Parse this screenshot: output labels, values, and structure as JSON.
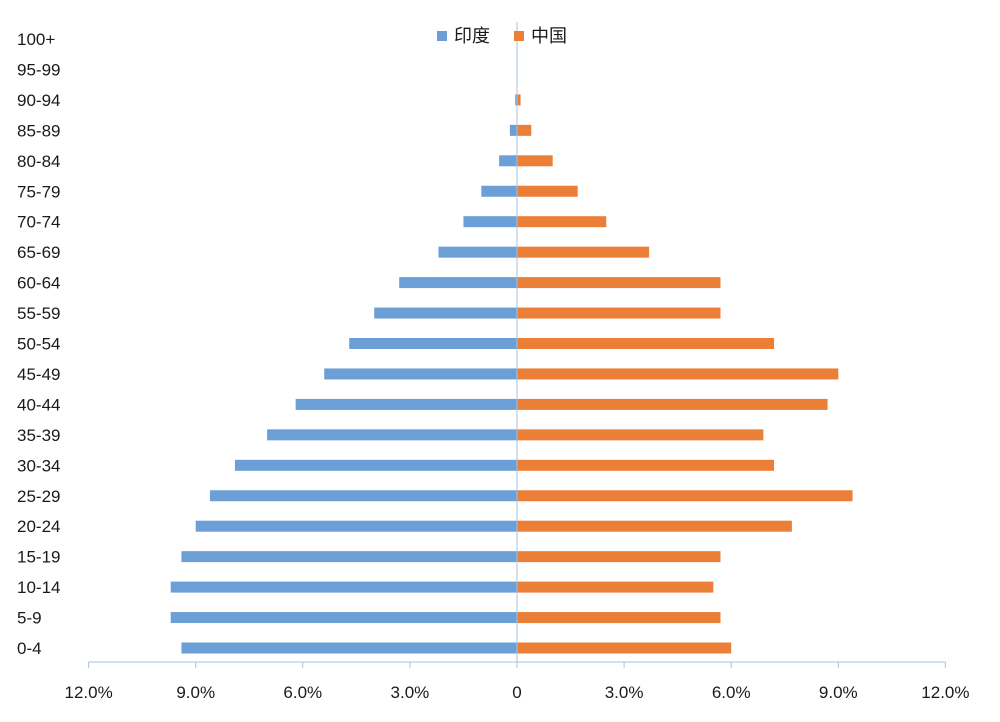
{
  "chart_data": {
    "type": "bar",
    "orientation": "horizontal",
    "layout": "population-pyramid",
    "categories": [
      "0-4",
      "5-9",
      "10-14",
      "15-19",
      "20-24",
      "25-29",
      "30-34",
      "35-39",
      "40-44",
      "45-49",
      "50-54",
      "55-59",
      "60-64",
      "65-69",
      "70-74",
      "75-79",
      "80-84",
      "85-89",
      "90-94",
      "95-99",
      "100+"
    ],
    "series": [
      {
        "name": "印度",
        "side": "left",
        "color": "#6b9fd6",
        "values": [
          9.4,
          9.7,
          9.7,
          9.4,
          9.0,
          8.6,
          7.9,
          7.0,
          6.2,
          5.4,
          4.7,
          4.0,
          3.3,
          2.2,
          1.5,
          1.0,
          0.5,
          0.2,
          0.05,
          0.0,
          0.0
        ]
      },
      {
        "name": "中国",
        "side": "right",
        "color": "#ec7f38",
        "values": [
          6.0,
          5.7,
          5.5,
          5.7,
          7.7,
          9.4,
          7.2,
          6.9,
          8.7,
          9.0,
          7.2,
          5.7,
          5.7,
          3.7,
          2.5,
          1.7,
          1.0,
          0.4,
          0.1,
          0.0,
          0.0
        ]
      }
    ],
    "x_ticks": [
      {
        "value": -12,
        "label": "12.0%"
      },
      {
        "value": -9,
        "label": "9.0%"
      },
      {
        "value": -6,
        "label": "6.0%"
      },
      {
        "value": -3,
        "label": "3.0%"
      },
      {
        "value": 0,
        "label": "0"
      },
      {
        "value": 3,
        "label": "3.0%"
      },
      {
        "value": 6,
        "label": "6.0%"
      },
      {
        "value": 9,
        "label": "9.0%"
      },
      {
        "value": 12,
        "label": "12.0%"
      }
    ],
    "xlim": [
      -12,
      12
    ],
    "title": "",
    "xlabel": "",
    "ylabel": "",
    "legend_position": "top-center",
    "grid": false,
    "axis_color": "#a9c0dc"
  }
}
